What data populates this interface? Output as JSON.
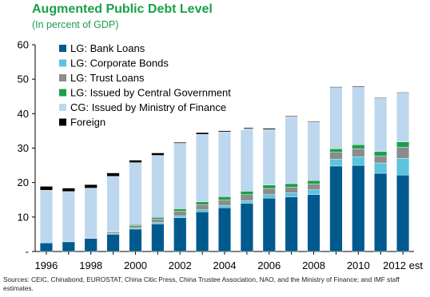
{
  "title": "Augmented Public Debt Level",
  "subtitle": "(In percent of GDP)",
  "source": "Sources: CEIC, Chinabond, EUROSTAT, China Citic Press, China Trustee Association, NAO, and the Ministry of Finance; and IMF staff estimates.",
  "chart_data": {
    "type": "bar",
    "stacked": true,
    "categories": [
      "1996",
      "1997",
      "1998",
      "1999",
      "2000",
      "2001",
      "2002",
      "2003",
      "2004",
      "2005",
      "2006",
      "2007",
      "2008",
      "2009",
      "2010",
      "2011",
      "2012 est"
    ],
    "x_tick_labels": [
      "1996",
      "",
      "1998",
      "",
      "2000",
      "",
      "2002",
      "",
      "2004",
      "",
      "2006",
      "",
      "2008",
      "",
      "2010",
      "",
      "2012 est"
    ],
    "ylim": [
      0,
      60
    ],
    "y_ticks": [
      0,
      10,
      20,
      30,
      40,
      50,
      60
    ],
    "y_tick_labels": [
      "-",
      "10",
      "20",
      "30",
      "40",
      "50",
      "60"
    ],
    "grid": false,
    "legend_position": "top-left",
    "series": [
      {
        "name": "LG: Bank Loans",
        "color": "#005a8e",
        "values": [
          2.5,
          2.8,
          3.8,
          5.0,
          6.5,
          8.0,
          9.8,
          11.5,
          12.7,
          14.0,
          15.5,
          15.8,
          16.5,
          24.8,
          25.0,
          22.7,
          22.2
        ]
      },
      {
        "name": "LG: Corporate Bonds",
        "color": "#5bc4de",
        "values": [
          0.0,
          0.0,
          0.0,
          0.2,
          0.3,
          0.4,
          0.5,
          0.6,
          0.7,
          0.8,
          1.0,
          1.2,
          1.4,
          2.0,
          2.5,
          3.0,
          4.8
        ]
      },
      {
        "name": "LG: Trust Loans",
        "color": "#8c8c8c",
        "values": [
          0.0,
          0.0,
          0.0,
          0.4,
          0.7,
          1.0,
          1.4,
          1.5,
          1.6,
          1.7,
          1.8,
          1.7,
          1.7,
          2.0,
          2.3,
          2.0,
          3.3
        ]
      },
      {
        "name": "LG: Issued by Central Government",
        "color": "#1aa04a",
        "values": [
          0.0,
          0.0,
          0.0,
          0.2,
          0.3,
          0.5,
          0.7,
          0.8,
          0.9,
          1.0,
          1.0,
          1.0,
          1.0,
          1.0,
          1.2,
          1.3,
          1.5
        ]
      },
      {
        "name": "CG: Issued by Ministry of Finance",
        "color": "#bdd7ee",
        "values": [
          15.3,
          14.6,
          14.6,
          16.0,
          18.0,
          18.0,
          19.0,
          19.6,
          18.8,
          18.1,
          16.1,
          19.4,
          16.9,
          17.8,
          16.8,
          15.4,
          14.2
        ]
      },
      {
        "name": "Foreign",
        "color": "#000000",
        "values": [
          1.1,
          1.0,
          1.0,
          1.0,
          0.7,
          0.7,
          0.3,
          0.5,
          0.3,
          0.3,
          0.3,
          0.2,
          0.2,
          0.2,
          0.2,
          0.2,
          0.2
        ]
      }
    ]
  }
}
